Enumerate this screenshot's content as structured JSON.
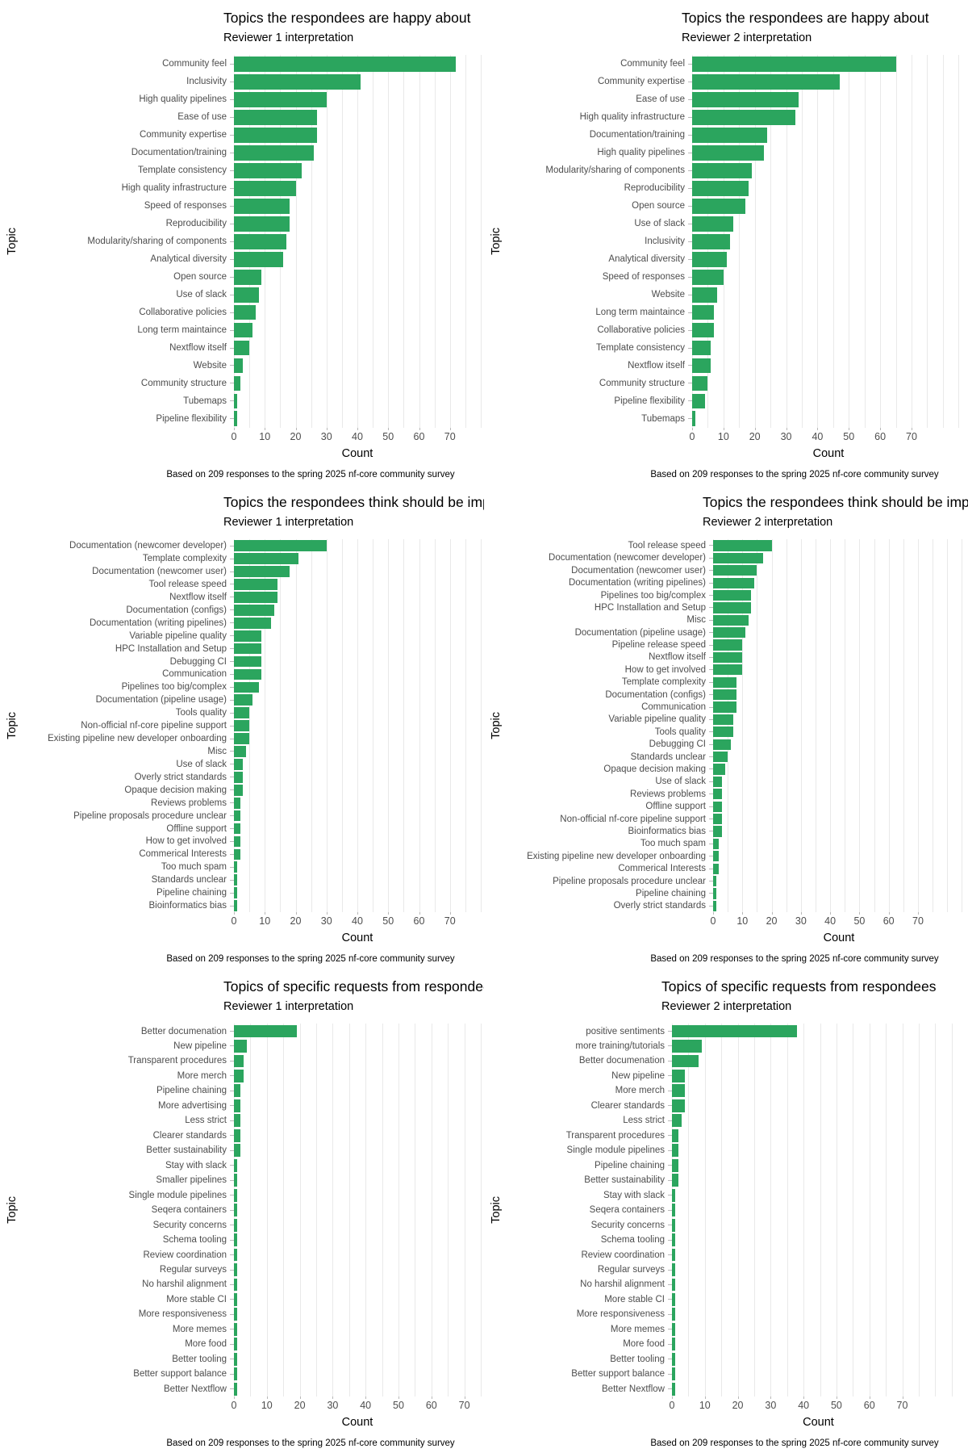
{
  "shared": {
    "xlabel": "Count",
    "ylabel": "Topic",
    "caption": "Based on 209 responses to the spring 2025 nf-core community survey",
    "x_ticks": [
      0,
      10,
      20,
      30,
      40,
      50,
      60,
      70
    ],
    "bar_color": "#2BA55E",
    "grid_color": "#E9E9E9",
    "axis_text_color": "#4D4D4D",
    "background": "#FFFFFF"
  },
  "chart_data": [
    {
      "type": "bar",
      "orientation": "horizontal",
      "title": "Topics the respondees are happy about",
      "subtitle": "Reviewer 1 interpretation",
      "xlabel": "Count",
      "ylabel": "Topic",
      "xlim": [
        0,
        80
      ],
      "grid": true,
      "xmax": 80,
      "label_width": 260,
      "categories": [
        "Community feel",
        "Inclusivity",
        "High quality pipelines",
        "Ease of use",
        "Community expertise",
        "Documentation/training",
        "Template consistency",
        "High quality infrastructure",
        "Speed of responses",
        "Reproducibility",
        "Modularity/sharing of components",
        "Analytical diversity",
        "Open source",
        "Use of slack",
        "Collaborative policies",
        "Long term maintaince",
        "Nextflow itself",
        "Website",
        "Community structure",
        "Tubemaps",
        "Pipeline flexibility"
      ],
      "values": [
        72,
        41,
        30,
        27,
        27,
        26,
        22,
        20,
        18,
        18,
        17,
        16,
        9,
        8,
        7,
        6,
        5,
        3,
        2,
        1,
        1
      ]
    },
    {
      "type": "bar",
      "orientation": "horizontal",
      "title": "Topics the respondees are happy about",
      "subtitle": "Reviewer 2 interpretation",
      "xlabel": "Count",
      "ylabel": "Topic",
      "xlim": [
        0,
        87
      ],
      "grid": true,
      "xmax": 87,
      "label_width": 228,
      "categories": [
        "Community feel",
        "Community expertise",
        "Ease of use",
        "High quality infrastructure",
        "Documentation/training",
        "High quality pipelines",
        "Modularity/sharing of components",
        "Reproducibility",
        "Open source",
        "Use of slack",
        "Inclusivity",
        "Analytical diversity",
        "Speed of responses",
        "Website",
        "Long term maintaince",
        "Collaborative policies",
        "Template consistency",
        "Nextflow itself",
        "Community structure",
        "Pipeline flexibility",
        "Tubemaps"
      ],
      "values": [
        65,
        47,
        34,
        33,
        24,
        23,
        19,
        18,
        17,
        13,
        12,
        11,
        10,
        8,
        7,
        7,
        6,
        6,
        5,
        4,
        1
      ]
    },
    {
      "type": "bar",
      "orientation": "horizontal",
      "title": "Topics the respondees think should be improved upon",
      "subtitle": "Reviewer 1 interpretation",
      "xlabel": "Count",
      "ylabel": "Topic",
      "xlim": [
        0,
        80
      ],
      "grid": true,
      "xmax": 80,
      "label_width": 260,
      "categories": [
        "Documentation (newcomer developer)",
        "Template complexity",
        "Documentation (newcomer user)",
        "Tool release speed",
        "Nextflow itself",
        "Documentation (configs)",
        "Documentation (writing pipelines)",
        "Variable pipeline quality",
        "HPC Installation and Setup",
        "Debugging CI",
        "Communication",
        "Pipelines too big/complex",
        "Documentation (pipeline usage)",
        "Tools quality",
        "Non-official nf-core pipeline support",
        "Existing pipeline new developer onboarding",
        "Misc",
        "Use of slack",
        "Overly strict standards",
        "Opaque decision making",
        "Reviews problems",
        "Pipeline proposals procedure unclear",
        "Offline support",
        "How to get involved",
        "Commerical Interests",
        "Too much spam",
        "Standards unclear",
        "Pipeline chaining",
        "Bioinformatics bias"
      ],
      "values": [
        30,
        21,
        18,
        14,
        14,
        13,
        12,
        9,
        9,
        9,
        9,
        8,
        6,
        5,
        5,
        5,
        4,
        3,
        3,
        3,
        2,
        2,
        2,
        2,
        2,
        1,
        1,
        1,
        1
      ]
    },
    {
      "type": "bar",
      "orientation": "horizontal",
      "title": "Topics the respondees think should be improved upon",
      "subtitle": "Reviewer 2 interpretation",
      "xlabel": "Count",
      "ylabel": "Topic",
      "xlim": [
        0,
        86
      ],
      "grid": true,
      "xmax": 86,
      "label_width": 254,
      "categories": [
        "Tool release speed",
        "Documentation (newcomer developer)",
        "Documentation (newcomer user)",
        "Documentation (writing pipelines)",
        "Pipelines too big/complex",
        "HPC Installation and Setup",
        "Misc",
        "Documentation (pipeline usage)",
        "Pipeline release speed",
        "Nextflow itself",
        "How to get involved",
        "Template complexity",
        "Documentation (configs)",
        "Communication",
        "Variable pipeline quality",
        "Tools quality",
        "Debugging CI",
        "Standards unclear",
        "Opaque decision making",
        "Use of slack",
        "Reviews problems",
        "Offline support",
        "Non-official nf-core pipeline support",
        "Bioinformatics bias",
        "Too much spam",
        "Existing pipeline new developer onboarding",
        "Commerical Interests",
        "Pipeline proposals procedure unclear",
        "Pipeline chaining",
        "Overly strict standards"
      ],
      "values": [
        20,
        17,
        15,
        14,
        13,
        13,
        12,
        11,
        10,
        10,
        10,
        8,
        8,
        8,
        7,
        7,
        6,
        5,
        4,
        3,
        3,
        3,
        3,
        3,
        2,
        2,
        2,
        1,
        1,
        1
      ]
    },
    {
      "type": "bar",
      "orientation": "horizontal",
      "title": "Topics of specific requests from respondees",
      "subtitle": "Reviewer 1 interpretation",
      "xlabel": "Count",
      "ylabel": "Topic",
      "xlim": [
        0,
        75
      ],
      "grid": true,
      "xmax": 75,
      "label_width": 260,
      "categories": [
        "Better documenation",
        "New pipeline",
        "Transparent procedures",
        "More merch",
        "Pipeline chaining",
        "More advertising",
        "Less strict",
        "Clearer standards",
        "Better sustainability",
        "Stay with slack",
        "Smaller pipelines",
        "Single module pipelines",
        "Seqera containers",
        "Security concerns",
        "Schema tooling",
        "Review coordination",
        "Regular surveys",
        "No harshil alignment",
        "More stable CI",
        "More responsiveness",
        "More memes",
        "More food",
        "Better tooling",
        "Better support balance",
        "Better Nextflow"
      ],
      "values": [
        19,
        4,
        3,
        3,
        2,
        2,
        2,
        2,
        2,
        1,
        1,
        1,
        1,
        1,
        1,
        1,
        1,
        1,
        1,
        1,
        1,
        1,
        1,
        1,
        1
      ]
    },
    {
      "type": "bar",
      "orientation": "horizontal",
      "title": "Topics of specific requests from respondees",
      "subtitle": "Reviewer 2 interpretation",
      "xlabel": "Count",
      "ylabel": "Topic",
      "xlim": [
        0,
        89
      ],
      "grid": true,
      "xmax": 89,
      "label_width": 203,
      "categories": [
        "positive sentiments",
        "more training/tutorials",
        "Better documenation",
        "New pipeline",
        "More merch",
        "Clearer standards",
        "Less strict",
        "Transparent procedures",
        "Single module pipelines",
        "Pipeline chaining",
        "Better sustainability",
        "Stay with slack",
        "Seqera containers",
        "Security concerns",
        "Schema tooling",
        "Review coordination",
        "Regular surveys",
        "No harshil alignment",
        "More stable CI",
        "More responsiveness",
        "More memes",
        "More food",
        "Better tooling",
        "Better support balance",
        "Better Nextflow"
      ],
      "values": [
        38,
        9,
        8,
        4,
        4,
        4,
        3,
        2,
        2,
        2,
        2,
        1,
        1,
        1,
        1,
        1,
        1,
        1,
        1,
        1,
        1,
        1,
        1,
        1,
        1
      ]
    }
  ]
}
